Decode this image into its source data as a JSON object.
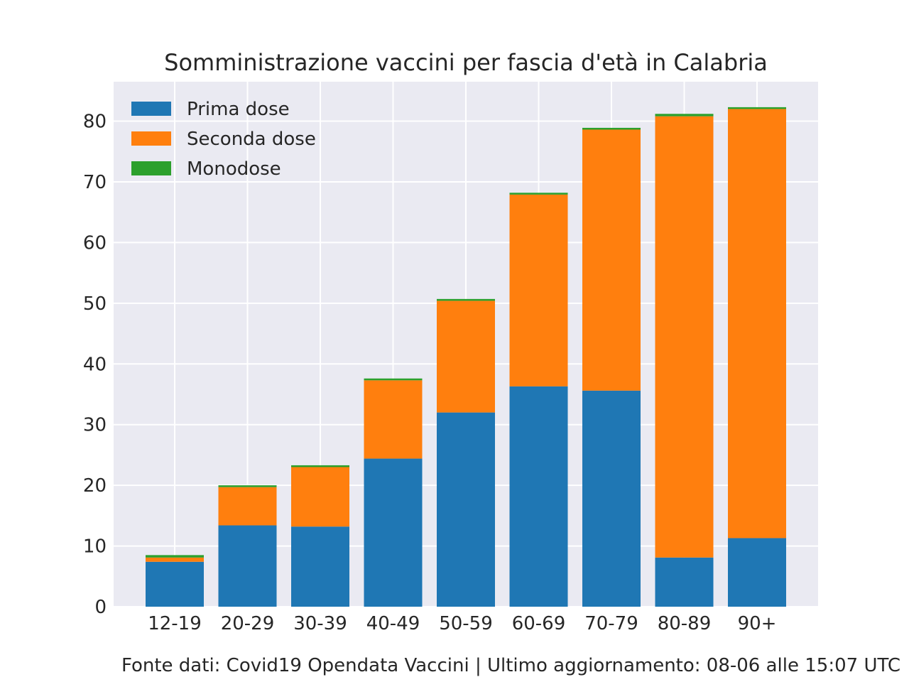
{
  "chart_data": {
    "type": "bar",
    "stacked": true,
    "title": "Somministrazione vaccini per fascia d'età in Calabria",
    "xlabel": "",
    "ylabel": "",
    "categories": [
      "12-19",
      "20-29",
      "30-39",
      "40-49",
      "50-59",
      "60-69",
      "70-79",
      "80-89",
      "90+"
    ],
    "series": [
      {
        "name": "Prima dose",
        "color": "#1f77b4",
        "values": [
          7.4,
          13.4,
          13.2,
          24.4,
          32.0,
          36.3,
          35.6,
          8.1,
          11.3
        ]
      },
      {
        "name": "Seconda dose",
        "color": "#ff7f0e",
        "values": [
          0.7,
          6.3,
          9.8,
          12.9,
          18.4,
          31.6,
          43.0,
          72.7,
          70.7
        ]
      },
      {
        "name": "Monodose",
        "color": "#2ca02c",
        "values": [
          0.4,
          0.3,
          0.3,
          0.3,
          0.3,
          0.3,
          0.3,
          0.4,
          0.3
        ]
      }
    ],
    "ylim": [
      0,
      86.5
    ],
    "yticks": [
      0,
      10,
      20,
      30,
      40,
      50,
      60,
      70,
      80
    ],
    "grid": true,
    "legend_position": "top-left"
  },
  "footer": {
    "text": "Fonte dati: Covid19 Opendata Vaccini | Ultimo aggiornamento: 08-06 alle 15:07 UTC"
  }
}
